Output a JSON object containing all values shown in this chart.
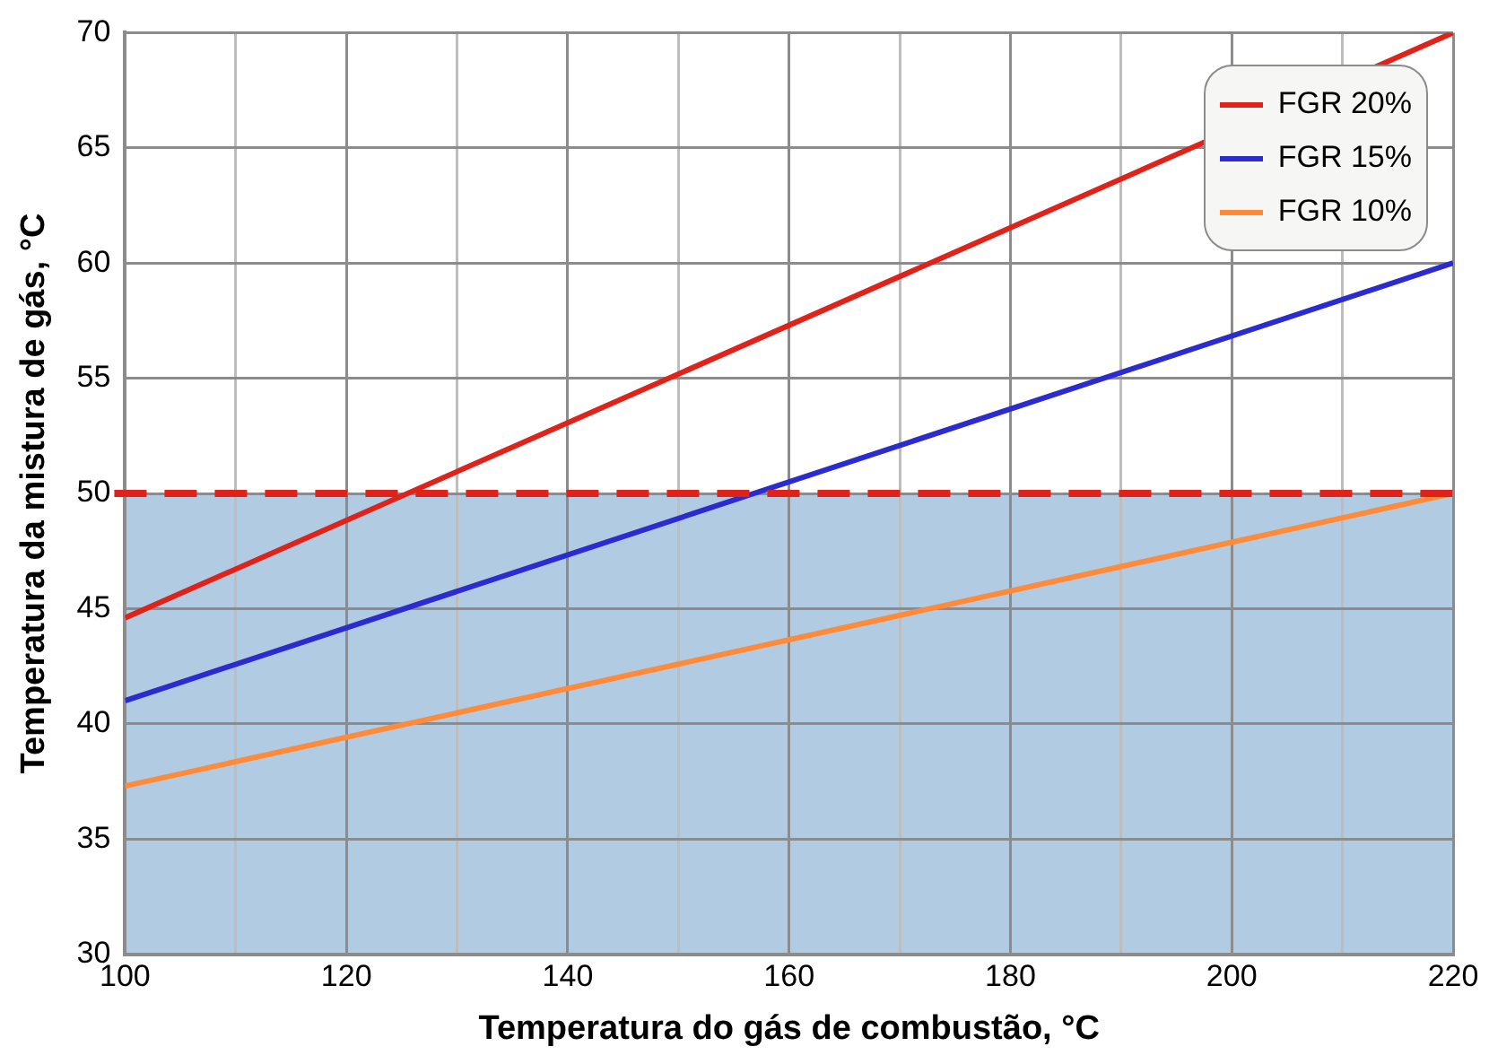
{
  "chart_data": {
    "type": "line",
    "xlabel": "Temperatura do gás de combustão, °C",
    "ylabel": "Temperatura da mistura de gás, °C",
    "x": [
      100,
      220
    ],
    "series": [
      {
        "name": "FGR 20%",
        "color": "#e0231a",
        "values": [
          44.6,
          70
        ]
      },
      {
        "name": "FGR 15%",
        "color": "#2b2bd0",
        "values": [
          41,
          60
        ]
      },
      {
        "name": "FGR 10%",
        "color": "#ff8a3a",
        "values": [
          37.3,
          50
        ]
      }
    ],
    "xlim": [
      100,
      220
    ],
    "xticks": [
      100,
      {
        "value": 110,
        "label": null
      },
      120,
      {
        "value": 130,
        "label": null
      },
      140,
      {
        "value": 150,
        "label": null
      },
      160,
      {
        "value": 170,
        "label": null
      },
      180,
      {
        "value": 190,
        "label": null
      },
      200,
      {
        "value": 210,
        "label": null
      },
      220
    ],
    "ylim": [
      30,
      70
    ],
    "yticks": [
      30,
      35,
      40,
      45,
      50,
      55,
      60,
      65,
      70
    ],
    "ref_lines": [
      {
        "axis": "y",
        "value": 50,
        "color": "#e0231a",
        "line_style": "dashed"
      }
    ],
    "bands": [
      {
        "axis": "y",
        "from": 30,
        "to": 50,
        "color": "#b0cbe2"
      }
    ],
    "grid": true,
    "legend": "top right",
    "marker": "none",
    "line_style": "solid"
  }
}
